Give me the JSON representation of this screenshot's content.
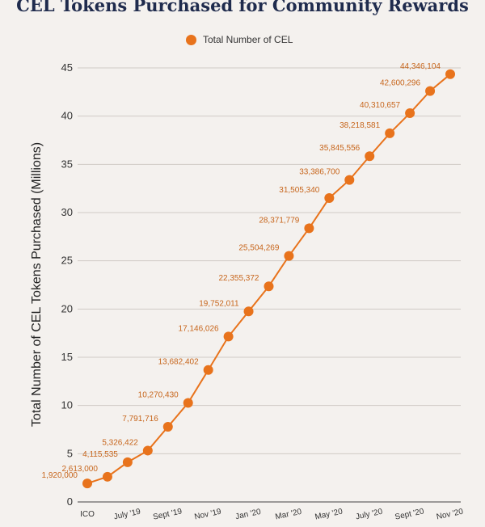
{
  "chart_data": {
    "type": "line",
    "title": "CEL Tokens Purchased for Community Rewards",
    "ylabel": "Total Number of CEL Tokens Purchased (Millions)",
    "xlabel": "",
    "ylim": [
      0,
      45
    ],
    "yticks": [
      0,
      5,
      10,
      15,
      20,
      25,
      30,
      35,
      40,
      45
    ],
    "grid": true,
    "legend_position": "top",
    "color": "#e8731c",
    "series": [
      {
        "name": "Total Number of CEL",
        "values": [
          1.92,
          2.613,
          4.115535,
          5.326422,
          7.791716,
          10.27043,
          13.682402,
          17.146026,
          19.752011,
          22.355372,
          25.504269,
          28.371779,
          31.50534,
          33.3867,
          35.845556,
          38.218581,
          40.310657,
          42.600296,
          44.346104
        ],
        "labels": [
          "1,920,000",
          "2,613,000",
          "4,115,535",
          "5,326,422",
          "7,791,716",
          "10,270,430",
          "13,682,402",
          "17,146,026",
          "19,752,011",
          "22,355,372",
          "25,504,269",
          "28,371,779",
          "31,505,340",
          "33,386,700",
          "35,845,556",
          "38,218,581",
          "40,310,657",
          "42,600,296",
          "44,346,104"
        ]
      }
    ],
    "tick_labels": [
      "ICO",
      "",
      "July '19",
      "",
      "Sept '19",
      "",
      "Nov '19",
      "",
      "Jan '20",
      "",
      "Mar '20",
      "",
      "May '20",
      "",
      "July '20",
      "",
      "Sept '20",
      "",
      "Nov '20"
    ]
  }
}
